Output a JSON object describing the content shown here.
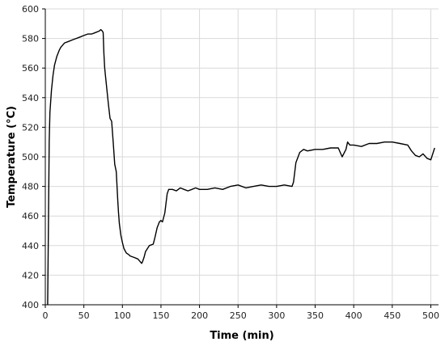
{
  "chart_data": {
    "type": "line",
    "title": "",
    "xlabel": "Time (min)",
    "ylabel": "Temperature (°C)",
    "xlim": [
      0,
      510
    ],
    "ylim": [
      400,
      600
    ],
    "xticks": [
      0,
      50,
      100,
      150,
      200,
      250,
      300,
      350,
      400,
      450,
      500
    ],
    "yticks": [
      400,
      420,
      440,
      460,
      480,
      500,
      520,
      540,
      560,
      580,
      600
    ],
    "grid": true,
    "legend": "none",
    "line_color": "#000000",
    "series": [
      {
        "x": [
          3,
          4,
          5,
          6,
          8,
          10,
          12,
          15,
          18,
          20,
          25,
          30,
          35,
          40,
          45,
          50,
          55,
          60,
          65,
          70,
          72,
          74,
          75,
          76,
          77,
          78,
          80,
          82,
          84,
          86,
          88,
          90,
          92,
          94,
          95,
          96,
          98,
          100,
          102,
          105,
          108,
          110,
          115,
          120,
          125,
          126,
          128,
          130,
          135,
          140,
          142,
          145,
          148,
          150,
          152,
          155,
          158,
          160,
          165,
          170,
          175,
          180,
          185,
          190,
          195,
          200,
          210,
          220,
          230,
          240,
          250,
          260,
          270,
          280,
          290,
          300,
          310,
          320,
          322,
          325,
          330,
          335,
          340,
          350,
          360,
          370,
          380,
          385,
          390,
          392,
          395,
          400,
          410,
          420,
          430,
          440,
          450,
          460,
          470,
          475,
          480,
          485,
          490,
          495,
          500,
          505
        ],
        "values": [
          400,
          450,
          510,
          530,
          545,
          555,
          562,
          568,
          572,
          574,
          577,
          578,
          579,
          580,
          581,
          582,
          583,
          583,
          584,
          585,
          586,
          585,
          584,
          570,
          560,
          555,
          545,
          535,
          526,
          524,
          510,
          495,
          490,
          470,
          462,
          455,
          447,
          442,
          438,
          435,
          434,
          433,
          432,
          431,
          428,
          429,
          432,
          436,
          440,
          441,
          445,
          452,
          456,
          457,
          456,
          462,
          475,
          478,
          478,
          477,
          479,
          478,
          477,
          478,
          479,
          478,
          478,
          479,
          478,
          480,
          481,
          479,
          480,
          481,
          480,
          480,
          481,
          480,
          483,
          496,
          503,
          505,
          504,
          505,
          505,
          506,
          506,
          500,
          505,
          510,
          508,
          508,
          507,
          509,
          509,
          510,
          510,
          509,
          508,
          504,
          501,
          500,
          502,
          499,
          498,
          506
        ]
      }
    ]
  }
}
